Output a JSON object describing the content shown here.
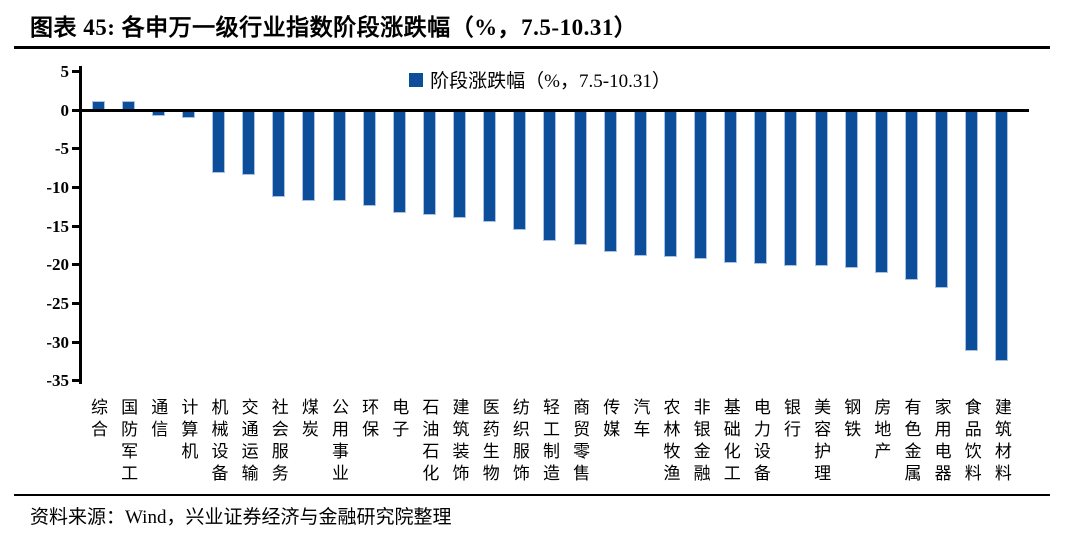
{
  "header": {
    "title": "图表 45: 各申万一级行业指数阶段涨跌幅（%，7.5-10.31）"
  },
  "chart_data": {
    "type": "bar",
    "title": "各申万一级行业指数阶段涨跌幅（%，7.5-10.31）",
    "legend": [
      "阶段涨跌幅（%，7.5-10.31）"
    ],
    "legend_position": "top-center",
    "categories": [
      "综合",
      "国防军工",
      "通信",
      "计算机",
      "机械设备",
      "交通运输",
      "社会服务",
      "煤炭",
      "公用事业",
      "环保",
      "电子",
      "石油石化",
      "建筑装饰",
      "医药生物",
      "纺织服饰",
      "轻工制造",
      "商贸零售",
      "传媒",
      "汽车",
      "农林牧渔",
      "非银金融",
      "基础化工",
      "电力设备",
      "银行",
      "美容护理",
      "钢铁",
      "房地产",
      "有色金属",
      "家用电器",
      "食品饮料",
      "建筑材料"
    ],
    "values": [
      1.1,
      1.1,
      -0.8,
      -1.0,
      -8.2,
      -8.4,
      -11.3,
      -11.7,
      -11.8,
      -12.4,
      -13.3,
      -13.6,
      -13.9,
      -14.5,
      -15.5,
      -16.9,
      -17.4,
      -18.3,
      -18.8,
      -19.0,
      -19.3,
      -19.8,
      -19.9,
      -20.1,
      -20.2,
      -20.4,
      -21.1,
      -22.0,
      -23.0,
      -31.2,
      -32.4
    ],
    "xlabel": "",
    "ylabel": "",
    "ylim": [
      -35,
      5
    ],
    "yticks": [
      5,
      0,
      -5,
      -10,
      -15,
      -20,
      -25,
      -30,
      -35
    ],
    "grid": false,
    "bar_color": "#0d4e9b",
    "bar_border_color": "#a9c2e3"
  },
  "footer": {
    "source": "资料来源：Wind，兴业证券经济与金融研究院整理"
  }
}
